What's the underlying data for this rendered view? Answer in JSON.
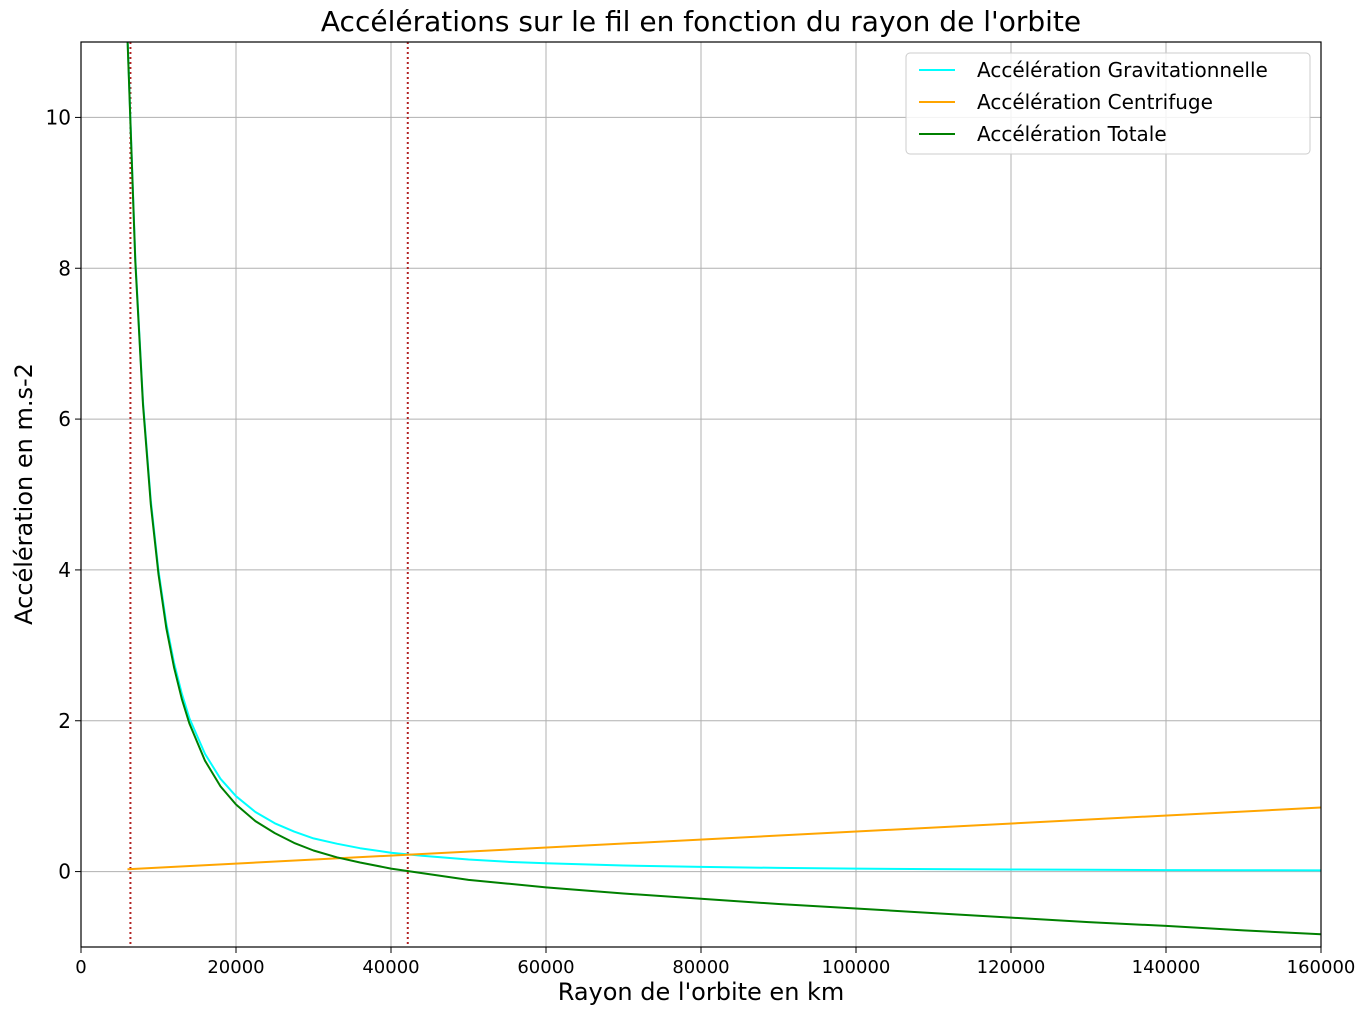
{
  "chart_data": {
    "type": "line",
    "title": "Accélérations sur le fil en fonction du rayon de l'orbite",
    "xlabel": "Rayon de l'orbite en km",
    "ylabel": "Accélération en m.s-2",
    "xlim": [
      0,
      160000
    ],
    "ylim": [
      -1,
      11
    ],
    "xticks": [
      0,
      20000,
      40000,
      60000,
      80000,
      100000,
      120000,
      140000,
      160000
    ],
    "xtick_labels": [
      "0",
      "20000",
      "40000",
      "60000",
      "80000",
      "100000",
      "120000",
      "140000",
      "160000"
    ],
    "yticks": [
      0,
      2,
      4,
      6,
      8,
      10
    ],
    "ytick_labels": [
      "0",
      "2",
      "4",
      "6",
      "8",
      "10"
    ],
    "grid": true,
    "legend_position": "top-right",
    "vertical_markers": [
      {
        "x": 6378,
        "color": "#b22222",
        "style": "dotted"
      },
      {
        "x": 42164,
        "color": "#b22222",
        "style": "dotted"
      }
    ],
    "series": [
      {
        "name": "Accélération Gravitationnelle",
        "color": "#00ffff",
        "x": [
          6000,
          7000,
          8000,
          9000,
          10000,
          11000,
          12000,
          13000,
          14000,
          16000,
          18000,
          20000,
          22500,
          25000,
          27500,
          30000,
          33000,
          36000,
          40000,
          44000,
          50000,
          55000,
          60000,
          70000,
          80000,
          90000,
          100000,
          110000,
          120000,
          130000,
          140000,
          150000,
          160000
        ],
        "values": [
          11.07,
          8.13,
          6.23,
          4.92,
          3.99,
          3.29,
          2.77,
          2.36,
          2.03,
          1.56,
          1.23,
          1.0,
          0.79,
          0.64,
          0.53,
          0.44,
          0.37,
          0.31,
          0.25,
          0.21,
          0.16,
          0.13,
          0.11,
          0.081,
          0.062,
          0.049,
          0.04,
          0.033,
          0.028,
          0.024,
          0.02,
          0.018,
          0.016
        ]
      },
      {
        "name": "Accélération Centrifuge",
        "color": "#ffa500",
        "x": [
          6000,
          160000
        ],
        "values": [
          0.032,
          0.85
        ]
      },
      {
        "name": "Accélération Totale",
        "color": "#008000",
        "x": [
          6000,
          7000,
          8000,
          9000,
          10000,
          11000,
          12000,
          13000,
          14000,
          16000,
          18000,
          20000,
          22500,
          25000,
          27500,
          30000,
          33000,
          36000,
          40000,
          44000,
          50000,
          55000,
          60000,
          70000,
          80000,
          90000,
          100000,
          110000,
          120000,
          130000,
          140000,
          150000,
          160000
        ],
        "values": [
          11.04,
          8.09,
          6.19,
          4.87,
          3.94,
          3.23,
          2.71,
          2.29,
          1.96,
          1.47,
          1.13,
          0.89,
          0.67,
          0.51,
          0.38,
          0.28,
          0.19,
          0.12,
          0.04,
          -0.02,
          -0.11,
          -0.16,
          -0.21,
          -0.29,
          -0.36,
          -0.43,
          -0.49,
          -0.55,
          -0.61,
          -0.67,
          -0.72,
          -0.78,
          -0.83
        ]
      }
    ]
  }
}
